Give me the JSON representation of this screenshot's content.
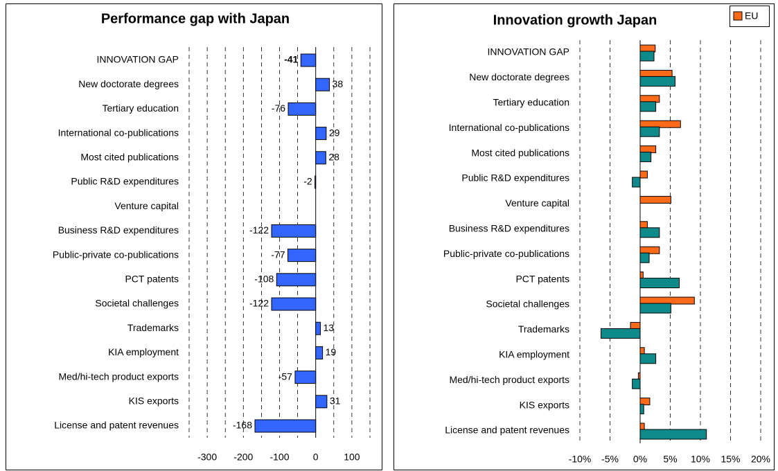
{
  "chart_data": [
    {
      "type": "hbar",
      "title": "Performance gap with Japan",
      "categories": [
        "INNOVATION GAP",
        "New doctorate degrees",
        "Tertiary education",
        "International co-publications",
        "Most cited publications",
        "Public R&D expenditures",
        "Venture capital",
        "Business R&D expenditures",
        "Public-private co-publications",
        "PCT patents",
        "Societal challenges",
        "Trademarks",
        "KIA employment",
        "Med/hi-tech product exports",
        "KIS exports",
        "License and patent revenues"
      ],
      "values": [
        -41,
        38,
        -76,
        29,
        28,
        -2,
        null,
        -122,
        -77,
        -108,
        -122,
        13,
        19,
        -57,
        31,
        -168
      ],
      "color": "#3366ff",
      "xlim": [
        -350,
        150
      ],
      "xticks": [
        -300,
        -200,
        -100,
        0,
        100
      ],
      "minor_xticks": [
        -350,
        -250,
        -150,
        -50,
        50,
        150
      ],
      "grid": true,
      "data_labels": true
    },
    {
      "type": "hbar",
      "title": "Innovation growth Japan",
      "categories": [
        "INNOVATION GAP",
        "New doctorate degrees",
        "Tertiary education",
        "International co-publications",
        "Most cited publications",
        "Public R&D expenditures",
        "Venture capital",
        "Business R&D expenditures",
        "Public-private co-publications",
        "PCT patents",
        "Societal challenges",
        "Trademarks",
        "KIA employment",
        "Med/hi-tech product exports",
        "KIS exports",
        "License and patent revenues"
      ],
      "series": [
        {
          "name": "EU",
          "color": "#ff6a1a",
          "values": [
            2.5,
            5.3,
            3.2,
            6.7,
            2.6,
            1.2,
            5.1,
            1.2,
            3.2,
            0.5,
            9.0,
            -1.6,
            0.7,
            -0.3,
            1.6,
            0.7
          ]
        },
        {
          "name": null,
          "color": "#0f8a8a",
          "values": [
            2.3,
            5.8,
            2.6,
            3.2,
            1.8,
            -1.3,
            null,
            3.2,
            1.5,
            6.5,
            5.1,
            -6.5,
            2.6,
            -1.3,
            0.6,
            11.0
          ]
        }
      ],
      "xlim": [
        -10,
        20
      ],
      "xticks": [
        {
          "value": -10,
          "label": "-10%"
        },
        {
          "value": -5,
          "label": "-5%"
        },
        {
          "value": 0,
          "label": "0%"
        },
        {
          "value": 5,
          "label": "5%"
        },
        {
          "value": 10,
          "label": "10%"
        },
        {
          "value": 15,
          "label": "15%"
        },
        {
          "value": 20,
          "label": "20%"
        }
      ],
      "grid": true,
      "legend": "top-right"
    }
  ]
}
